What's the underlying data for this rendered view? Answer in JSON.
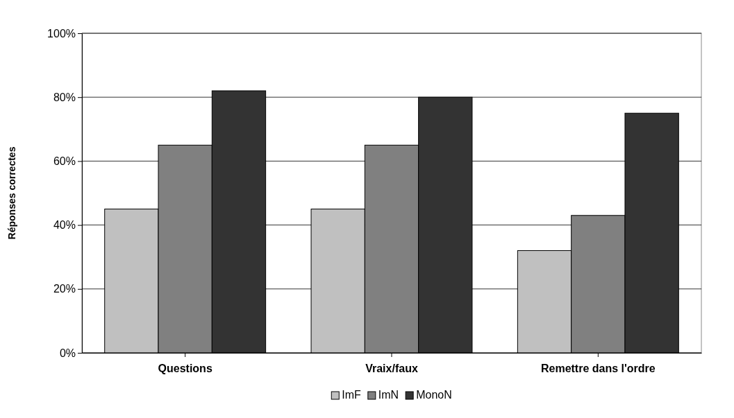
{
  "chart_data": {
    "type": "bar",
    "ylabel": "Réponses correctes",
    "categories": [
      "Questions",
      "Vraix/faux",
      "Remettre dans l'ordre"
    ],
    "series": [
      {
        "name": "ImF",
        "color": "#c0c0c0",
        "values": [
          45,
          45,
          32
        ]
      },
      {
        "name": "ImN",
        "color": "#808080",
        "values": [
          65,
          65,
          43
        ]
      },
      {
        "name": "MonoN",
        "color": "#333333",
        "values": [
          82,
          80,
          75
        ]
      }
    ],
    "ylim": [
      0,
      100
    ],
    "yticks": [
      {
        "value": 0,
        "label": "0%"
      },
      {
        "value": 20,
        "label": "20%"
      },
      {
        "value": 40,
        "label": "40%"
      },
      {
        "value": 60,
        "label": "60%"
      },
      {
        "value": 80,
        "label": "80%"
      },
      {
        "value": 100,
        "label": "100%"
      }
    ],
    "grid": "y",
    "legend": "bottom"
  }
}
